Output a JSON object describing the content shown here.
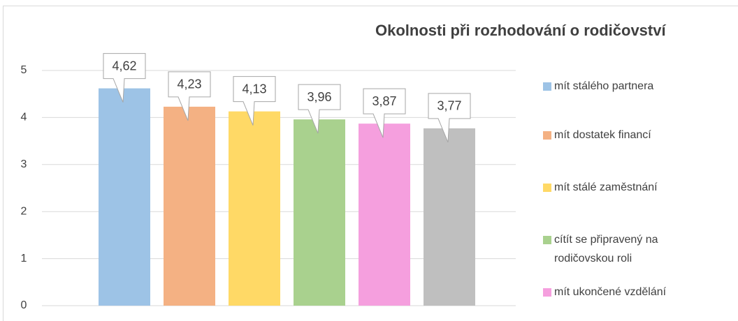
{
  "chart_data": {
    "type": "bar",
    "title": "Okolnosti při rozhodování o rodičovství",
    "categories": [
      "mít stálého partnera",
      "mít dostatek financí",
      "mít stálé zaměstnání",
      "cítít se připravený na rodičovskou roli",
      "mít ukončené vzdělání",
      null
    ],
    "values": [
      4.62,
      4.23,
      4.13,
      3.96,
      3.87,
      3.77
    ],
    "value_labels": [
      "4,62",
      "4,23",
      "4,13",
      "3,96",
      "3,87",
      "3,77"
    ],
    "colors": [
      "#9dc3e6",
      "#f4b183",
      "#ffd966",
      "#a9d18e",
      "#f59fde",
      "#bfbfbf"
    ],
    "ylim": [
      0,
      5
    ],
    "yticks": [
      0,
      1,
      2,
      3,
      4,
      5
    ],
    "grid": true,
    "legend": "right"
  }
}
